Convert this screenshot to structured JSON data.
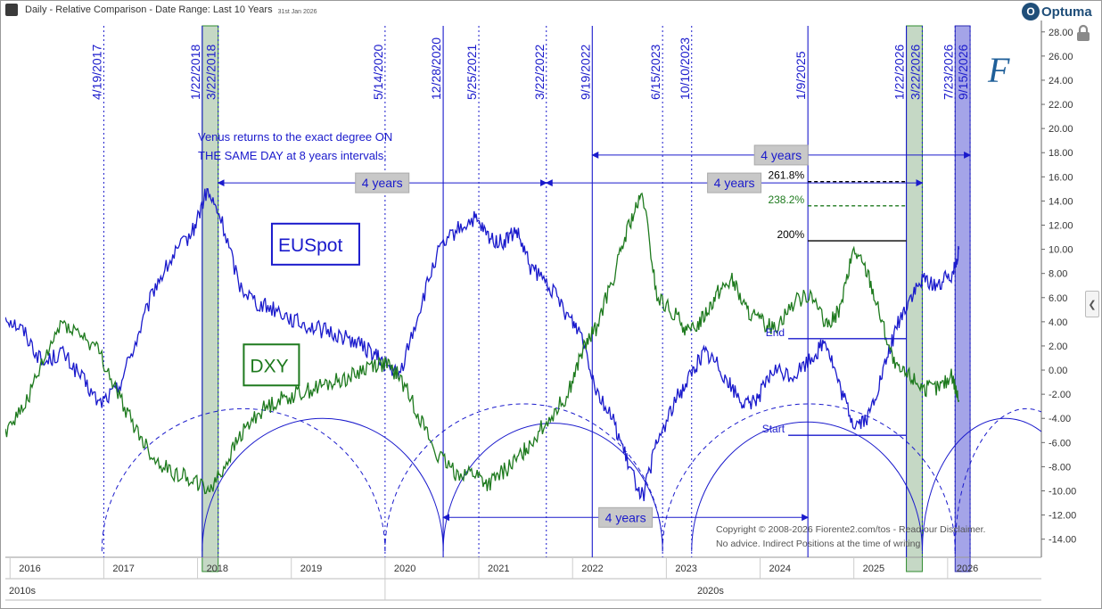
{
  "header": {
    "title": "Daily - Relative Comparison - Date Range: Last 10 Years",
    "date_stamp": "31st Jan 2026",
    "brand": "Optuma",
    "brand_mark": "O"
  },
  "colors": {
    "euspot": "#1a1acc",
    "dxy": "#1e7a1e",
    "cycle": "#1a1acc",
    "shade_green": "#7ea87e",
    "shade_blue": "#5a5ad6"
  },
  "icons": {
    "lock": "lock-icon",
    "collapse": "chevron-left-icon",
    "signature": "fiorente-signature-icon"
  },
  "chart_data": {
    "type": "line",
    "title": "Daily - Relative Comparison - Date Range: Last 10 Years",
    "x_axis": {
      "years": [
        "2016",
        "2017",
        "2018",
        "2019",
        "2020",
        "2021",
        "2022",
        "2023",
        "2024",
        "2025",
        "2026"
      ],
      "decades": [
        "2010s",
        "2020s"
      ],
      "range": [
        2015.95,
        2027.0
      ]
    },
    "y_axis": {
      "range": [
        -15.5,
        28.5
      ],
      "ticks": [
        "28.00",
        "26.00",
        "24.00",
        "22.00",
        "20.00",
        "18.00",
        "16.00",
        "14.00",
        "12.00",
        "10.00",
        "8.00",
        "6.00",
        "4.00",
        "2.00",
        "0.00",
        "-2.00",
        "-4.00",
        "-6.00",
        "-8.00",
        "-10.00",
        "-12.00",
        "-14.00"
      ]
    },
    "series": [
      {
        "name": "EUSpot",
        "color": "#1a1acc",
        "points": [
          [
            2015.95,
            4.5
          ],
          [
            2016.15,
            3.2
          ],
          [
            2016.35,
            0.5
          ],
          [
            2016.55,
            1.5
          ],
          [
            2016.75,
            -0.5
          ],
          [
            2016.95,
            -2.8
          ],
          [
            2017.15,
            -1.5
          ],
          [
            2017.35,
            2.5
          ],
          [
            2017.55,
            7.0
          ],
          [
            2017.75,
            9.5
          ],
          [
            2017.95,
            11.5
          ],
          [
            2018.1,
            14.8
          ],
          [
            2018.25,
            12.5
          ],
          [
            2018.45,
            7.0
          ],
          [
            2018.65,
            5.5
          ],
          [
            2018.85,
            5.0
          ],
          [
            2019.05,
            4.0
          ],
          [
            2019.25,
            3.5
          ],
          [
            2019.45,
            3.0
          ],
          [
            2019.65,
            2.5
          ],
          [
            2019.85,
            1.5
          ],
          [
            2020.0,
            0.5
          ],
          [
            2020.15,
            -0.5
          ],
          [
            2020.35,
            4.5
          ],
          [
            2020.55,
            9.5
          ],
          [
            2020.75,
            11.5
          ],
          [
            2020.95,
            12.5
          ],
          [
            2021.1,
            11.0
          ],
          [
            2021.25,
            10.5
          ],
          [
            2021.4,
            11.5
          ],
          [
            2021.55,
            8.5
          ],
          [
            2021.75,
            7.0
          ],
          [
            2021.95,
            4.5
          ],
          [
            2022.1,
            3.0
          ],
          [
            2022.25,
            -1.5
          ],
          [
            2022.45,
            -4.5
          ],
          [
            2022.6,
            -8.0
          ],
          [
            2022.75,
            -10.5
          ],
          [
            2022.9,
            -6.0
          ],
          [
            2023.1,
            -2.5
          ],
          [
            2023.25,
            -0.5
          ],
          [
            2023.4,
            1.5
          ],
          [
            2023.55,
            0.5
          ],
          [
            2023.7,
            -1.5
          ],
          [
            2023.85,
            -3.0
          ],
          [
            2024.0,
            -2.0
          ],
          [
            2024.15,
            0.0
          ],
          [
            2024.35,
            -0.5
          ],
          [
            2024.55,
            1.0
          ],
          [
            2024.7,
            2.5
          ],
          [
            2024.85,
            -1.5
          ],
          [
            2025.0,
            -4.5
          ],
          [
            2025.15,
            -4.0
          ],
          [
            2025.3,
            -0.5
          ],
          [
            2025.45,
            3.5
          ],
          [
            2025.6,
            6.0
          ],
          [
            2025.75,
            7.5
          ],
          [
            2025.9,
            7.0
          ],
          [
            2026.05,
            8.0
          ],
          [
            2026.12,
            10.0
          ]
        ]
      },
      {
        "name": "DXY",
        "color": "#1e7a1e",
        "points": [
          [
            2015.95,
            -5.0
          ],
          [
            2016.15,
            -3.0
          ],
          [
            2016.35,
            0.5
          ],
          [
            2016.55,
            4.0
          ],
          [
            2016.75,
            3.0
          ],
          [
            2016.95,
            1.5
          ],
          [
            2017.15,
            -2.0
          ],
          [
            2017.35,
            -5.0
          ],
          [
            2017.55,
            -7.5
          ],
          [
            2017.75,
            -8.5
          ],
          [
            2017.95,
            -9.0
          ],
          [
            2018.1,
            -10.0
          ],
          [
            2018.25,
            -8.5
          ],
          [
            2018.45,
            -5.5
          ],
          [
            2018.65,
            -3.5
          ],
          [
            2018.85,
            -2.5
          ],
          [
            2019.05,
            -2.0
          ],
          [
            2019.25,
            -1.5
          ],
          [
            2019.45,
            -1.0
          ],
          [
            2019.65,
            -0.5
          ],
          [
            2019.85,
            0.5
          ],
          [
            2020.0,
            0.5
          ],
          [
            2020.15,
            -0.5
          ],
          [
            2020.35,
            -3.5
          ],
          [
            2020.55,
            -7.0
          ],
          [
            2020.75,
            -8.5
          ],
          [
            2020.95,
            -8.5
          ],
          [
            2021.1,
            -9.5
          ],
          [
            2021.25,
            -8.5
          ],
          [
            2021.4,
            -7.5
          ],
          [
            2021.55,
            -6.0
          ],
          [
            2021.75,
            -4.0
          ],
          [
            2021.95,
            -2.0
          ],
          [
            2022.1,
            1.5
          ],
          [
            2022.25,
            3.5
          ],
          [
            2022.45,
            8.0
          ],
          [
            2022.6,
            12.0
          ],
          [
            2022.75,
            14.5
          ],
          [
            2022.9,
            6.0
          ],
          [
            2023.1,
            4.5
          ],
          [
            2023.25,
            3.0
          ],
          [
            2023.4,
            4.5
          ],
          [
            2023.55,
            6.5
          ],
          [
            2023.7,
            7.5
          ],
          [
            2023.85,
            5.0
          ],
          [
            2024.0,
            4.0
          ],
          [
            2024.15,
            3.5
          ],
          [
            2024.35,
            5.5
          ],
          [
            2024.55,
            6.5
          ],
          [
            2024.7,
            3.5
          ],
          [
            2024.85,
            5.0
          ],
          [
            2025.0,
            10.0
          ],
          [
            2025.15,
            8.0
          ],
          [
            2025.3,
            4.0
          ],
          [
            2025.45,
            0.0
          ],
          [
            2025.6,
            -0.5
          ],
          [
            2025.75,
            -1.5
          ],
          [
            2025.9,
            -1.5
          ],
          [
            2026.05,
            -0.5
          ],
          [
            2026.12,
            -2.5
          ]
        ]
      }
    ],
    "vertical_dates": [
      {
        "label": "4/19/2017",
        "x": 2017.0,
        "style": "dotted"
      },
      {
        "label": "1/22/2018",
        "x": 2018.05,
        "style": "solid"
      },
      {
        "label": "3/22/2018",
        "x": 2018.22,
        "style": "dotted"
      },
      {
        "label": "5/14/2020",
        "x": 2020.0,
        "style": "dotted"
      },
      {
        "label": "12/28/2020",
        "x": 2020.62,
        "style": "solid"
      },
      {
        "label": "5/25/2021",
        "x": 2021.0,
        "style": "dotted"
      },
      {
        "label": "3/22/2022",
        "x": 2021.72,
        "style": "dotted"
      },
      {
        "label": "9/19/2022",
        "x": 2022.21,
        "style": "solid"
      },
      {
        "label": "6/15/2023",
        "x": 2022.96,
        "style": "dotted"
      },
      {
        "label": "10/10/2023",
        "x": 2023.27,
        "style": "dotted"
      },
      {
        "label": "1/9/2025",
        "x": 2024.51,
        "style": "solid"
      },
      {
        "label": "1/22/2026",
        "x": 2025.56,
        "style": "solid"
      },
      {
        "label": "3/22/2026",
        "x": 2025.73,
        "style": "dotted"
      },
      {
        "label": "7/23/2026",
        "x": 2026.08,
        "style": "dotted"
      },
      {
        "label": "9/15/2026",
        "x": 2026.24,
        "style": "dotted"
      }
    ],
    "shaded_bands": [
      {
        "from": 2018.05,
        "to": 2018.22,
        "color": "green"
      },
      {
        "from": 2025.56,
        "to": 2025.73,
        "color": "green"
      },
      {
        "from": 2026.08,
        "to": 2026.24,
        "color": "blue"
      }
    ],
    "series_labels": [
      {
        "text": "EUSpot",
        "series": "EUSpot",
        "x": 2018.85,
        "y": 10.5
      },
      {
        "text": "DXY",
        "series": "DXY",
        "x": 2018.55,
        "y": 0.5
      }
    ],
    "annotations": {
      "note_line1": "Venus returns to the exact degree ON",
      "note_line2": "THE SAME DAY at 8 years intervals.",
      "interval_label": "4 years",
      "intervals": [
        {
          "from": 2018.22,
          "to": 2021.72,
          "y": 15.5
        },
        {
          "from": 2021.72,
          "to": 2025.73,
          "y": 15.5
        },
        {
          "from": 2022.21,
          "to": 2026.24,
          "y": 17.8
        },
        {
          "from": 2020.62,
          "to": 2024.51,
          "y": -12.2
        }
      ],
      "levels": [
        {
          "label": "261.8%",
          "y": 15.6,
          "style": "dashed",
          "color": "#000000",
          "from": 2024.51,
          "to": 2025.56
        },
        {
          "label": "238.2%",
          "y": 13.6,
          "style": "dashed",
          "color": "#1e7a1e",
          "from": 2024.51,
          "to": 2025.56
        },
        {
          "label": "200%",
          "y": 10.7,
          "style": "solid",
          "color": "#000000",
          "from": 2024.51,
          "to": 2025.56
        },
        {
          "label": "End",
          "y": 2.6,
          "style": "solid",
          "color": "#1a1acc",
          "from": 2024.3,
          "to": 2025.56
        },
        {
          "label": "Start",
          "y": -5.4,
          "style": "solid",
          "color": "#1a1acc",
          "from": 2024.3,
          "to": 2025.56
        }
      ],
      "copyright_line1": "Copyright © 2008-2026 Fiorente2.com/tos - Read our Disclaimer.",
      "copyright_line2": "No advice. Indirect Positions at the time of writing"
    },
    "cycle_arcs": [
      {
        "from": 2016.98,
        "to": 2020.0,
        "style": "dashed",
        "peak": -3.2
      },
      {
        "from": 2018.05,
        "to": 2020.62,
        "style": "solid",
        "peak": -4.0
      },
      {
        "from": 2020.62,
        "to": 2022.96,
        "style": "solid",
        "peak": -4.4
      },
      {
        "from": 2020.0,
        "to": 2022.96,
        "style": "dashed",
        "peak": -2.8
      },
      {
        "from": 2022.96,
        "to": 2026.08,
        "style": "dashed",
        "peak": -2.8
      },
      {
        "from": 2023.27,
        "to": 2025.73,
        "style": "solid",
        "peak": -4.3
      },
      {
        "from": 2025.73,
        "to": 2027.5,
        "style": "solid",
        "peak": -4.0
      },
      {
        "from": 2026.08,
        "to": 2027.6,
        "style": "dashed",
        "peak": -3.2
      }
    ]
  }
}
